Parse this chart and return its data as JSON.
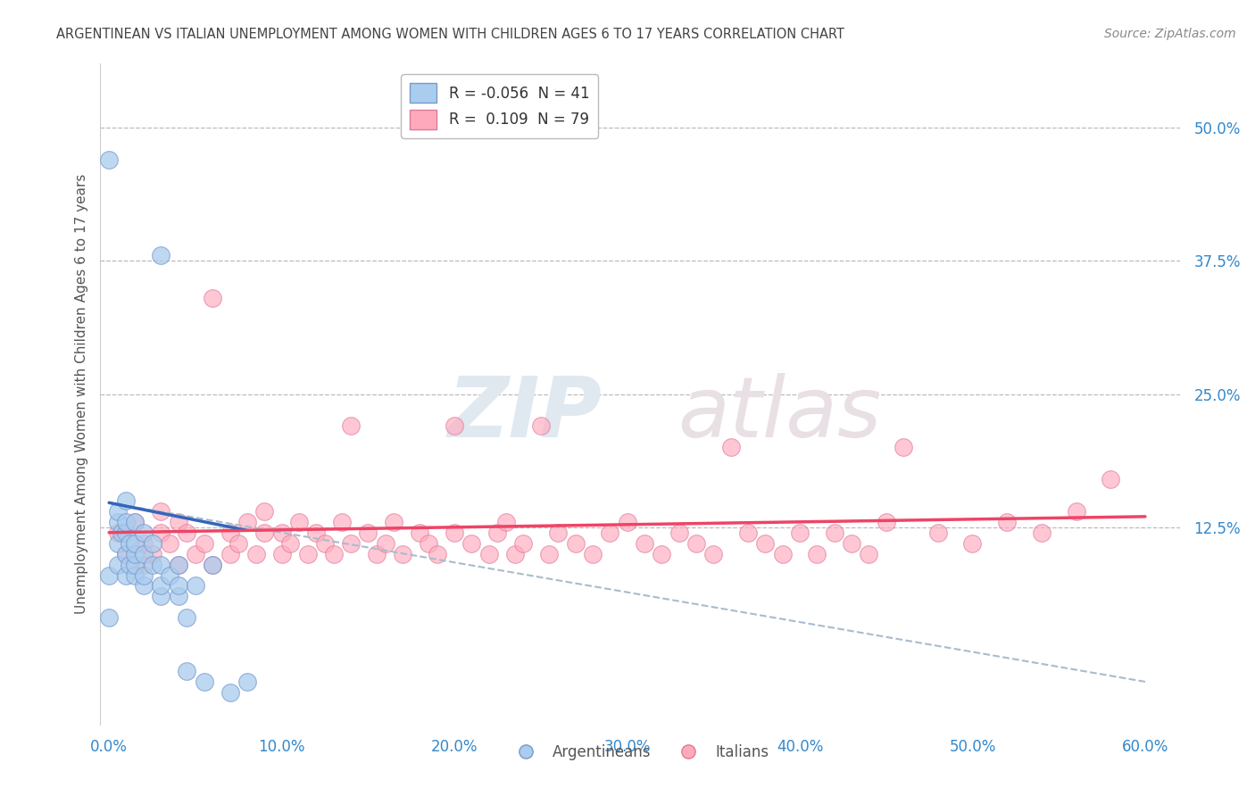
{
  "title": "ARGENTINEAN VS ITALIAN UNEMPLOYMENT AMONG WOMEN WITH CHILDREN AGES 6 TO 17 YEARS CORRELATION CHART",
  "source": "Source: ZipAtlas.com",
  "ylabel": "Unemployment Among Women with Children Ages 6 to 17 years",
  "xlim": [
    -0.005,
    0.62
  ],
  "ylim": [
    -0.06,
    0.56
  ],
  "xticks": [
    0.0,
    0.1,
    0.2,
    0.3,
    0.4,
    0.5,
    0.6
  ],
  "xticklabels": [
    "0.0%",
    "10.0%",
    "20.0%",
    "30.0%",
    "40.0%",
    "50.0%",
    "60.0%"
  ],
  "yticks_right": [
    0.125,
    0.25,
    0.375,
    0.5
  ],
  "yticklabels_right": [
    "12.5%",
    "25.0%",
    "37.5%",
    "50.0%"
  ],
  "watermark_zip": "ZIP",
  "watermark_atlas": "atlas",
  "legend_R1": "-0.056",
  "legend_N1": "41",
  "legend_R2": "0.109",
  "legend_N2": "79",
  "blue_color": "#aaccee",
  "blue_edge": "#7799cc",
  "pink_color": "#ffaabc",
  "pink_edge": "#dd7799",
  "blue_line_color": "#3366bb",
  "pink_line_color": "#ee4466",
  "dashed_line_color": "#aabbcc",
  "background_color": "#ffffff",
  "grid_color": "#bbbbbb",
  "title_color": "#444444",
  "axis_label_color": "#555555",
  "tick_label_color": "#3388cc",
  "argentinean_x": [
    0.0,
    0.0,
    0.0,
    0.005,
    0.005,
    0.005,
    0.005,
    0.007,
    0.01,
    0.01,
    0.01,
    0.01,
    0.01,
    0.012,
    0.012,
    0.015,
    0.015,
    0.015,
    0.015,
    0.015,
    0.02,
    0.02,
    0.02,
    0.02,
    0.025,
    0.025,
    0.03,
    0.03,
    0.03,
    0.03,
    0.035,
    0.04,
    0.04,
    0.04,
    0.045,
    0.045,
    0.05,
    0.055,
    0.06,
    0.07,
    0.08
  ],
  "argentinean_y": [
    0.47,
    0.08,
    0.04,
    0.09,
    0.11,
    0.13,
    0.14,
    0.12,
    0.08,
    0.1,
    0.12,
    0.13,
    0.15,
    0.09,
    0.11,
    0.08,
    0.09,
    0.1,
    0.11,
    0.13,
    0.07,
    0.08,
    0.1,
    0.12,
    0.09,
    0.11,
    0.06,
    0.07,
    0.09,
    0.38,
    0.08,
    0.06,
    0.07,
    0.09,
    -0.01,
    0.04,
    0.07,
    -0.02,
    0.09,
    -0.03,
    -0.02
  ],
  "italian_x": [
    0.005,
    0.01,
    0.015,
    0.02,
    0.02,
    0.025,
    0.03,
    0.03,
    0.035,
    0.04,
    0.04,
    0.045,
    0.05,
    0.055,
    0.06,
    0.06,
    0.07,
    0.07,
    0.075,
    0.08,
    0.085,
    0.09,
    0.09,
    0.1,
    0.1,
    0.105,
    0.11,
    0.115,
    0.12,
    0.125,
    0.13,
    0.135,
    0.14,
    0.14,
    0.15,
    0.155,
    0.16,
    0.165,
    0.17,
    0.18,
    0.185,
    0.19,
    0.2,
    0.2,
    0.21,
    0.22,
    0.225,
    0.23,
    0.235,
    0.24,
    0.25,
    0.255,
    0.26,
    0.27,
    0.28,
    0.29,
    0.3,
    0.31,
    0.32,
    0.33,
    0.34,
    0.35,
    0.36,
    0.37,
    0.38,
    0.39,
    0.4,
    0.41,
    0.42,
    0.43,
    0.44,
    0.45,
    0.46,
    0.48,
    0.5,
    0.52,
    0.54,
    0.56,
    0.58
  ],
  "italian_y": [
    0.12,
    0.1,
    0.13,
    0.09,
    0.11,
    0.1,
    0.12,
    0.14,
    0.11,
    0.09,
    0.13,
    0.12,
    0.1,
    0.11,
    0.09,
    0.34,
    0.1,
    0.12,
    0.11,
    0.13,
    0.1,
    0.12,
    0.14,
    0.1,
    0.12,
    0.11,
    0.13,
    0.1,
    0.12,
    0.11,
    0.1,
    0.13,
    0.11,
    0.22,
    0.12,
    0.1,
    0.11,
    0.13,
    0.1,
    0.12,
    0.11,
    0.1,
    0.12,
    0.22,
    0.11,
    0.1,
    0.12,
    0.13,
    0.1,
    0.11,
    0.22,
    0.1,
    0.12,
    0.11,
    0.1,
    0.12,
    0.13,
    0.11,
    0.1,
    0.12,
    0.11,
    0.1,
    0.2,
    0.12,
    0.11,
    0.1,
    0.12,
    0.1,
    0.12,
    0.11,
    0.1,
    0.13,
    0.2,
    0.12,
    0.11,
    0.13,
    0.12,
    0.14,
    0.17
  ],
  "blue_trend_x": [
    0.0,
    0.08
  ],
  "blue_trend_y": [
    0.148,
    0.122
  ],
  "pink_trend_x": [
    0.0,
    0.6
  ],
  "pink_trend_y": [
    0.12,
    0.135
  ],
  "dash_trend_x": [
    0.0,
    0.6
  ],
  "dash_trend_y": [
    0.148,
    -0.02
  ]
}
